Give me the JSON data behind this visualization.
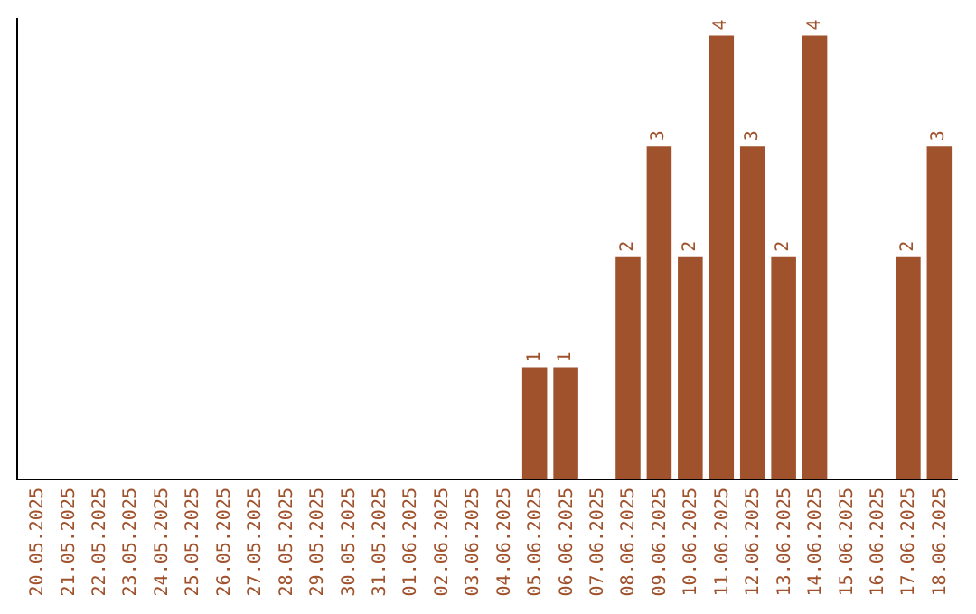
{
  "chart_data": {
    "type": "bar",
    "categories": [
      "20.05.2025",
      "21.05.2025",
      "22.05.2025",
      "23.05.2025",
      "24.05.2025",
      "25.05.2025",
      "26.05.2025",
      "27.05.2025",
      "28.05.2025",
      "29.05.2025",
      "30.05.2025",
      "31.05.2025",
      "01.06.2025",
      "02.06.2025",
      "03.06.2025",
      "04.06.2025",
      "05.06.2025",
      "06.06.2025",
      "07.06.2025",
      "08.06.2025",
      "09.06.2025",
      "10.06.2025",
      "11.06.2025",
      "12.06.2025",
      "13.06.2025",
      "14.06.2025",
      "15.06.2025",
      "16.06.2025",
      "17.06.2025",
      "18.06.2025"
    ],
    "values": [
      null,
      null,
      null,
      null,
      null,
      null,
      null,
      null,
      null,
      null,
      null,
      null,
      null,
      null,
      null,
      null,
      1,
      1,
      null,
      2,
      3,
      2,
      4,
      3,
      2,
      4,
      null,
      null,
      2,
      3
    ],
    "data_labels": true,
    "color": "#a0522d",
    "legend": false
  }
}
